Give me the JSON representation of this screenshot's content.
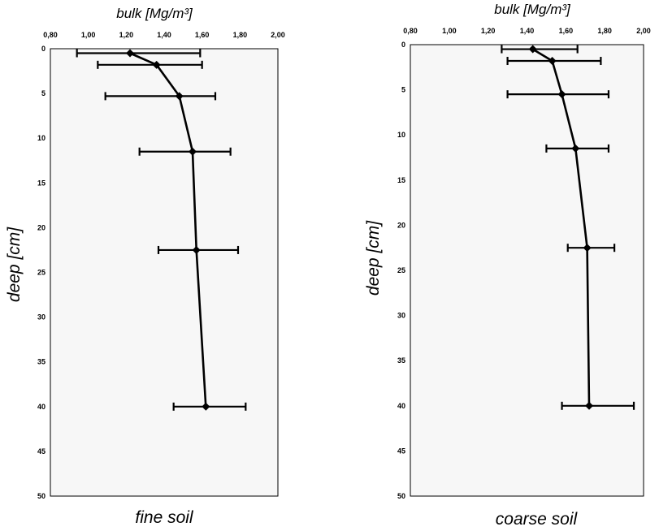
{
  "chart_data": [
    {
      "type": "line",
      "title": "bulk [Mg/m³]",
      "ylabel": "deep [cm]",
      "caption": "fine soil",
      "xlim": [
        0.8,
        2.0
      ],
      "ylim": [
        0,
        50
      ],
      "x_ticks": [
        "0,80",
        "1,00",
        "1,20",
        "1,40",
        "1,60",
        "1,80",
        "2,00"
      ],
      "y_ticks": [
        "0",
        "5",
        "10",
        "15",
        "20",
        "25",
        "30",
        "35",
        "40",
        "45",
        "50"
      ],
      "series": [
        {
          "x": [
            1.22,
            1.36,
            1.48,
            1.55,
            1.57,
            1.62
          ],
          "y": [
            0.5,
            1.8,
            5.3,
            11.5,
            22.5,
            40
          ],
          "err_low": [
            0.94,
            1.05,
            1.09,
            1.27,
            1.37,
            1.45
          ],
          "err_high": [
            1.59,
            1.6,
            1.67,
            1.75,
            1.79,
            1.83
          ]
        }
      ]
    },
    {
      "type": "line",
      "title": "bulk [Mg/m³]",
      "ylabel": "deep [cm]",
      "caption": "coarse soil",
      "xlim": [
        0.8,
        2.0
      ],
      "ylim": [
        0,
        50
      ],
      "x_ticks": [
        "0,80",
        "1,00",
        "1,20",
        "1,40",
        "1,60",
        "1,80",
        "2,00"
      ],
      "y_ticks": [
        "0",
        "5",
        "10",
        "15",
        "20",
        "25",
        "30",
        "35",
        "40",
        "45",
        "50"
      ],
      "series": [
        {
          "x": [
            1.43,
            1.53,
            1.58,
            1.65,
            1.71,
            1.72
          ],
          "y": [
            0.5,
            1.8,
            5.5,
            11.5,
            22.5,
            40
          ],
          "err_low": [
            1.27,
            1.3,
            1.3,
            1.5,
            1.61,
            1.58
          ],
          "err_high": [
            1.66,
            1.78,
            1.82,
            1.82,
            1.85,
            1.95
          ]
        }
      ]
    }
  ]
}
